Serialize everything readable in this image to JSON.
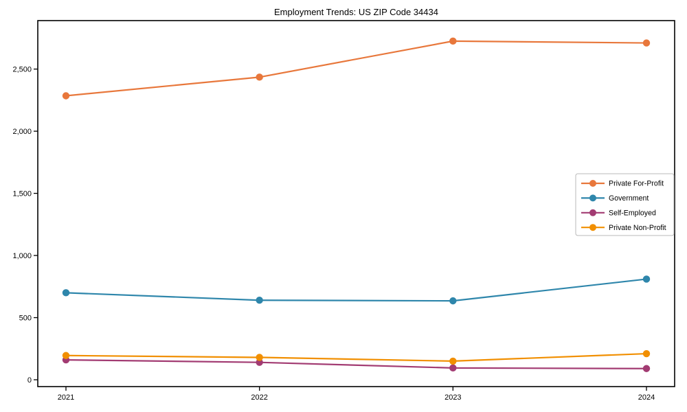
{
  "chart_data": {
    "type": "line",
    "title": "Employment Trends: US ZIP Code 34434",
    "x": [
      "2021",
      "2022",
      "2023",
      "2024"
    ],
    "series": [
      {
        "name": "Private For-Profit",
        "color": "#E8773B",
        "values": [
          2285,
          2435,
          2725,
          2710
        ]
      },
      {
        "name": "Government",
        "color": "#2E86AB",
        "values": [
          700,
          640,
          635,
          810
        ]
      },
      {
        "name": "Self-Employed",
        "color": "#A23B72",
        "values": [
          160,
          140,
          95,
          90
        ]
      },
      {
        "name": "Private Non-Profit",
        "color": "#F18F01",
        "values": [
          195,
          180,
          150,
          210
        ]
      }
    ],
    "yticks": [
      0,
      500,
      1000,
      1500,
      2000,
      2500
    ],
    "ytick_labels": [
      "0",
      "500",
      "1,000",
      "1,500",
      "2,000",
      "2,500"
    ],
    "ylim": [
      -55,
      2890
    ],
    "xlabel": "",
    "ylabel": "",
    "grid": false,
    "legend_position": "center right",
    "background_color": "#ffffff",
    "spine_color": "#000000",
    "legend_border_color": "#b8b8b8"
  }
}
